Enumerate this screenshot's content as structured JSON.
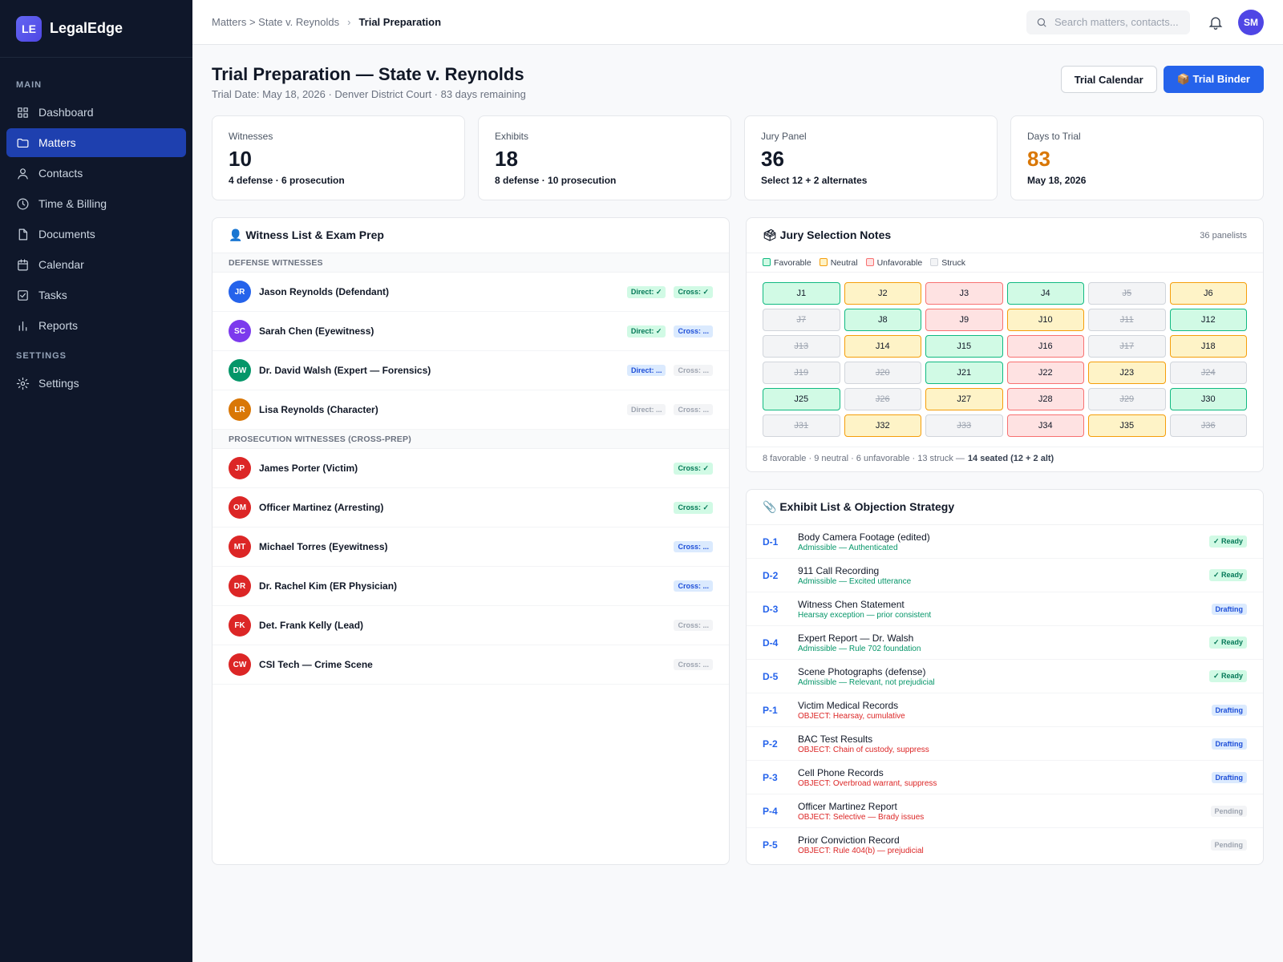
{
  "app": {
    "logo": "LE",
    "name": "LegalEdge"
  },
  "sidebar": {
    "main_label": "MAIN",
    "settings_label": "SETTINGS",
    "items": [
      {
        "label": "Dashboard",
        "icon": "grid-icon"
      },
      {
        "label": "Matters",
        "icon": "folder-icon",
        "active": true
      },
      {
        "label": "Contacts",
        "icon": "user-icon"
      },
      {
        "label": "Time & Billing",
        "icon": "clock-icon"
      },
      {
        "label": "Documents",
        "icon": "document-icon"
      },
      {
        "label": "Calendar",
        "icon": "calendar-icon"
      },
      {
        "label": "Tasks",
        "icon": "checkbox-icon"
      },
      {
        "label": "Reports",
        "icon": "bar-chart-icon"
      }
    ],
    "settings_items": [
      {
        "label": "Settings",
        "icon": "gear-icon"
      }
    ]
  },
  "header": {
    "breadcrumb_parent": "Matters > State v. Reynolds",
    "breadcrumb_sep": "›",
    "breadcrumb_current": "Trial Preparation",
    "search_placeholder": "Search matters, contacts...",
    "user_initials": "SM"
  },
  "page": {
    "title": "Trial Preparation — State v. Reynolds",
    "subtitle": "Trial Date: May 18, 2026 · Denver District Court · 83 days remaining",
    "btn_calendar": "Trial Calendar",
    "btn_binder": "📦 Trial Binder"
  },
  "stats": [
    {
      "label": "Witnesses",
      "value": "10",
      "sub": "4 defense · 6 prosecution"
    },
    {
      "label": "Exhibits",
      "value": "18",
      "sub": "8 defense · 10 prosecution"
    },
    {
      "label": "Jury Panel",
      "value": "36",
      "sub": "Select 12 + 2 alternates"
    },
    {
      "label": "Days to Trial",
      "value": "83",
      "sub": "May 18, 2026",
      "accent": "#d97706"
    }
  ],
  "witness": {
    "title": "👤 Witness List & Exam Prep",
    "defense_label": "DEFENSE WITNESSES",
    "prosecution_label": "PROSECUTION WITNESSES (CROSS-PREP)",
    "defense": [
      {
        "initials": "JR",
        "name": "Jason Reynolds (Defendant)",
        "color": "#2563eb",
        "direct": "Direct: ✓",
        "direct_state": "done",
        "cross": "Cross: ✓",
        "cross_state": "done"
      },
      {
        "initials": "SC",
        "name": "Sarah Chen (Eyewitness)",
        "color": "#7c3aed",
        "direct": "Direct: ✓",
        "direct_state": "done",
        "cross": "Cross: ...",
        "cross_state": "prog"
      },
      {
        "initials": "DW",
        "name": "Dr. David Walsh (Expert — Forensics)",
        "color": "#059669",
        "direct": "Direct: ...",
        "direct_state": "prog",
        "cross": "Cross: ...",
        "cross_state": "none"
      },
      {
        "initials": "LR",
        "name": "Lisa Reynolds (Character)",
        "color": "#d97706",
        "direct": "Direct: ...",
        "direct_state": "none",
        "cross": "Cross: ...",
        "cross_state": "none"
      }
    ],
    "prosecution": [
      {
        "initials": "JP",
        "name": "James Porter (Victim)",
        "color": "#dc2626",
        "cross": "Cross: ✓",
        "cross_state": "done"
      },
      {
        "initials": "OM",
        "name": "Officer Martinez (Arresting)",
        "color": "#dc2626",
        "cross": "Cross: ✓",
        "cross_state": "done"
      },
      {
        "initials": "MT",
        "name": "Michael Torres (Eyewitness)",
        "color": "#dc2626",
        "cross": "Cross: ...",
        "cross_state": "prog"
      },
      {
        "initials": "DR",
        "name": "Dr. Rachel Kim (ER Physician)",
        "color": "#dc2626",
        "cross": "Cross: ...",
        "cross_state": "prog"
      },
      {
        "initials": "FK",
        "name": "Det. Frank Kelly (Lead)",
        "color": "#dc2626",
        "cross": "Cross: ...",
        "cross_state": "none"
      },
      {
        "initials": "CW",
        "name": "CSI Tech — Crime Scene",
        "color": "#dc2626",
        "cross": "Cross: ...",
        "cross_state": "none"
      }
    ]
  },
  "jury": {
    "title": "🗳 Jury Selection Notes",
    "meta": "36 panelists",
    "legend": [
      {
        "label": "Favorable",
        "key": "fav"
      },
      {
        "label": "Neutral",
        "key": "neu"
      },
      {
        "label": "Unfavorable",
        "key": "unf"
      },
      {
        "label": "Struck",
        "key": "str"
      }
    ],
    "panelists": [
      {
        "id": "J1",
        "s": "fav"
      },
      {
        "id": "J2",
        "s": "neu"
      },
      {
        "id": "J3",
        "s": "unf"
      },
      {
        "id": "J4",
        "s": "fav"
      },
      {
        "id": "J5",
        "s": "str"
      },
      {
        "id": "J6",
        "s": "neu"
      },
      {
        "id": "J7",
        "s": "str"
      },
      {
        "id": "J8",
        "s": "fav"
      },
      {
        "id": "J9",
        "s": "unf"
      },
      {
        "id": "J10",
        "s": "neu"
      },
      {
        "id": "J11",
        "s": "str"
      },
      {
        "id": "J12",
        "s": "fav"
      },
      {
        "id": "J13",
        "s": "str"
      },
      {
        "id": "J14",
        "s": "neu"
      },
      {
        "id": "J15",
        "s": "fav"
      },
      {
        "id": "J16",
        "s": "unf"
      },
      {
        "id": "J17",
        "s": "str"
      },
      {
        "id": "J18",
        "s": "neu"
      },
      {
        "id": "J19",
        "s": "str"
      },
      {
        "id": "J20",
        "s": "str"
      },
      {
        "id": "J21",
        "s": "fav"
      },
      {
        "id": "J22",
        "s": "unf"
      },
      {
        "id": "J23",
        "s": "neu"
      },
      {
        "id": "J24",
        "s": "str"
      },
      {
        "id": "J25",
        "s": "fav"
      },
      {
        "id": "J26",
        "s": "str"
      },
      {
        "id": "J27",
        "s": "neu"
      },
      {
        "id": "J28",
        "s": "unf"
      },
      {
        "id": "J29",
        "s": "str"
      },
      {
        "id": "J30",
        "s": "fav"
      },
      {
        "id": "J31",
        "s": "str"
      },
      {
        "id": "J32",
        "s": "neu"
      },
      {
        "id": "J33",
        "s": "str"
      },
      {
        "id": "J34",
        "s": "unf"
      },
      {
        "id": "J35",
        "s": "neu"
      },
      {
        "id": "J36",
        "s": "str"
      }
    ],
    "summary": "8 favorable · 9 neutral · 6 unfavorable · 13 struck —",
    "summary_bold": "14 seated (12 + 2 alt)"
  },
  "exhibits": {
    "title": "📎 Exhibit List & Objection Strategy",
    "items": [
      {
        "id": "D-1",
        "name": "Body Camera Footage (edited)",
        "note": "Admissible — Authenticated",
        "kind": "ok",
        "status": "✓ Ready",
        "state": "ready"
      },
      {
        "id": "D-2",
        "name": "911 Call Recording",
        "note": "Admissible — Excited utterance",
        "kind": "ok",
        "status": "✓ Ready",
        "state": "ready"
      },
      {
        "id": "D-3",
        "name": "Witness Chen Statement",
        "note": "Hearsay exception — prior consistent",
        "kind": "ok",
        "status": "Drafting",
        "state": "drafting"
      },
      {
        "id": "D-4",
        "name": "Expert Report — Dr. Walsh",
        "note": "Admissible — Rule 702 foundation",
        "kind": "ok",
        "status": "✓ Ready",
        "state": "ready"
      },
      {
        "id": "D-5",
        "name": "Scene Photographs (defense)",
        "note": "Admissible — Relevant, not prejudicial",
        "kind": "ok",
        "status": "✓ Ready",
        "state": "ready"
      },
      {
        "id": "P-1",
        "name": "Victim Medical Records",
        "note": "OBJECT: Hearsay, cumulative",
        "kind": "obj",
        "status": "Drafting",
        "state": "drafting"
      },
      {
        "id": "P-2",
        "name": "BAC Test Results",
        "note": "OBJECT: Chain of custody, suppress",
        "kind": "obj",
        "status": "Drafting",
        "state": "drafting"
      },
      {
        "id": "P-3",
        "name": "Cell Phone Records",
        "note": "OBJECT: Overbroad warrant, suppress",
        "kind": "obj",
        "status": "Drafting",
        "state": "drafting"
      },
      {
        "id": "P-4",
        "name": "Officer Martinez Report",
        "note": "OBJECT: Selective — Brady issues",
        "kind": "obj",
        "status": "Pending",
        "state": "pending"
      },
      {
        "id": "P-5",
        "name": "Prior Conviction Record",
        "note": "OBJECT: Rule 404(b) — prejudicial",
        "kind": "obj",
        "status": "Pending",
        "state": "pending"
      }
    ]
  }
}
